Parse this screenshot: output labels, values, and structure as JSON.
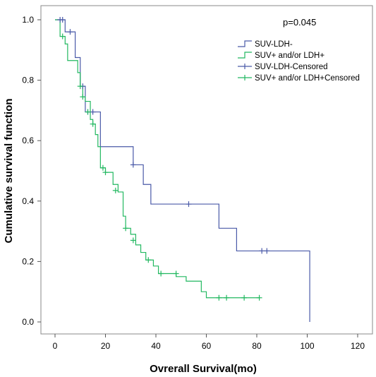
{
  "chart_data": {
    "type": "line",
    "subtype": "kaplan-meier step",
    "title": "",
    "xlabel": "Ovrerall Survival(mo)",
    "ylabel": "Cumulative survival function",
    "xlim": [
      0,
      120
    ],
    "ylim": [
      0,
      1.0
    ],
    "x_ticks": [
      0,
      20,
      40,
      60,
      80,
      100,
      120
    ],
    "y_ticks": [
      0.0,
      0.2,
      0.4,
      0.6,
      0.8,
      1.0
    ],
    "x_tick_labels": [
      "0",
      "20",
      "40",
      "60",
      "80",
      "100",
      "120"
    ],
    "y_tick_labels": [
      "0.0",
      "0.2",
      "0.4",
      "0.6",
      "0.8",
      "1.0"
    ],
    "grid": false,
    "legend_position": "top-right",
    "annotation": "p=0.045",
    "series": [
      {
        "name": "SUV-LDH-",
        "color": "#4a5aa8",
        "x": [
          0,
          4,
          8,
          10,
          12,
          18,
          31,
          35,
          38,
          65,
          72,
          101
        ],
        "y": [
          1.0,
          0.96,
          0.875,
          0.78,
          0.695,
          0.58,
          0.52,
          0.455,
          0.39,
          0.31,
          0.235,
          0.0
        ]
      },
      {
        "name": "SUV+ and/or LDH+",
        "color": "#22b860",
        "x": [
          0,
          2,
          4,
          5,
          9,
          10,
          11,
          12,
          14,
          15,
          16,
          17,
          18,
          20,
          23,
          25,
          27,
          28,
          30,
          32,
          34,
          36,
          39,
          41,
          48,
          52,
          58,
          60,
          81
        ],
        "y": [
          1.0,
          0.945,
          0.92,
          0.865,
          0.825,
          0.78,
          0.745,
          0.73,
          0.67,
          0.655,
          0.62,
          0.58,
          0.51,
          0.495,
          0.455,
          0.43,
          0.35,
          0.31,
          0.29,
          0.255,
          0.23,
          0.205,
          0.185,
          0.16,
          0.15,
          0.135,
          0.1,
          0.08,
          0.08
        ]
      }
    ],
    "censored": [
      {
        "name": "SUV-LDH-Censored",
        "color": "#4a5aa8",
        "x": [
          2,
          3,
          6,
          11,
          13,
          15,
          31,
          53,
          82,
          84
        ],
        "y": [
          1.0,
          1.0,
          0.96,
          0.78,
          0.695,
          0.695,
          0.52,
          0.39,
          0.235,
          0.235
        ]
      },
      {
        "name": "SUV+ and/or LDH+Censored",
        "color": "#22b860",
        "x": [
          3,
          10,
          11,
          13,
          15,
          19,
          20,
          24,
          28,
          31,
          37,
          42,
          48,
          65,
          68,
          75,
          81
        ],
        "y": [
          0.945,
          0.78,
          0.745,
          0.695,
          0.655,
          0.51,
          0.495,
          0.435,
          0.31,
          0.27,
          0.205,
          0.16,
          0.16,
          0.08,
          0.08,
          0.08,
          0.08
        ]
      }
    ]
  }
}
